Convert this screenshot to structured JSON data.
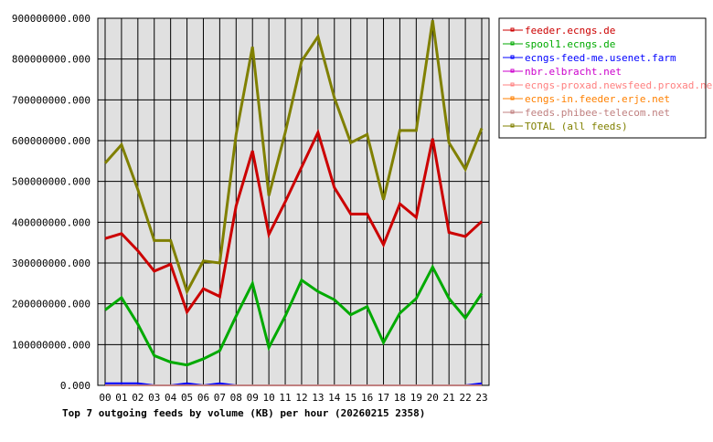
{
  "chart_data": {
    "type": "line",
    "title": "Top 7 outgoing feeds by volume (KB) per hour (20260215 2358)",
    "xlabel": "",
    "ylabel": "",
    "ylim": [
      0,
      900000000
    ],
    "yticks": [
      "0.000",
      "100000000.000",
      "200000000.000",
      "300000000.000",
      "400000000.000",
      "500000000.000",
      "600000000.000",
      "700000000.000",
      "800000000.000",
      "900000000.000"
    ],
    "categories": [
      "00",
      "01",
      "02",
      "03",
      "04",
      "05",
      "06",
      "07",
      "08",
      "09",
      "10",
      "11",
      "12",
      "13",
      "14",
      "15",
      "16",
      "17",
      "18",
      "19",
      "20",
      "21",
      "22",
      "23"
    ],
    "grid": true,
    "legend_position": "right",
    "series": [
      {
        "name": "feeder.ecngs.de",
        "color": "#cc0000",
        "values": [
          360000000,
          372000000,
          330000000,
          280000000,
          297000000,
          180000000,
          237000000,
          218000000,
          440000000,
          575000000,
          370000000,
          450000000,
          535000000,
          620000000,
          485000000,
          420000000,
          420000000,
          345000000,
          445000000,
          412000000,
          605000000,
          375000000,
          365000000,
          402000000
        ]
      },
      {
        "name": "spool1.ecngs.de",
        "color": "#00aa00",
        "values": [
          185000000,
          215000000,
          150000000,
          73000000,
          57000000,
          50000000,
          65000000,
          85000000,
          170000000,
          250000000,
          93000000,
          170000000,
          258000000,
          230000000,
          210000000,
          173000000,
          193000000,
          105000000,
          177000000,
          213000000,
          290000000,
          213000000,
          165000000,
          225000000
        ]
      },
      {
        "name": "ecngs-feed-me.usenet.farm",
        "color": "#0000ff",
        "values": [
          5000000,
          5000000,
          5000000,
          0,
          0,
          5000000,
          0,
          5000000,
          0,
          0,
          0,
          0,
          0,
          0,
          0,
          0,
          0,
          0,
          0,
          0,
          0,
          0,
          0,
          5000000
        ]
      },
      {
        "name": "nbr.elbracht.net",
        "color": "#cc00cc",
        "values": [
          0,
          0,
          0,
          0,
          0,
          0,
          0,
          0,
          0,
          0,
          0,
          0,
          0,
          0,
          0,
          0,
          0,
          0,
          0,
          0,
          0,
          0,
          0,
          0
        ]
      },
      {
        "name": "ecngs-proxad.newsfeed.proxad.net",
        "color": "#ff8080",
        "values": [
          0,
          0,
          0,
          0,
          0,
          0,
          0,
          0,
          0,
          0,
          0,
          0,
          0,
          0,
          0,
          0,
          0,
          0,
          0,
          0,
          0,
          0,
          0,
          0
        ]
      },
      {
        "name": "ecngs-in.feeder.erje.net",
        "color": "#ff8000",
        "values": [
          0,
          0,
          0,
          0,
          0,
          0,
          0,
          0,
          0,
          0,
          0,
          0,
          0,
          0,
          0,
          0,
          0,
          0,
          0,
          0,
          0,
          0,
          0,
          0
        ]
      },
      {
        "name": "feeds.phibee-telecom.net",
        "color": "#c08080",
        "values": [
          0,
          0,
          0,
          0,
          0,
          0,
          0,
          0,
          0,
          0,
          0,
          0,
          0,
          0,
          0,
          0,
          0,
          0,
          0,
          0,
          0,
          0,
          0,
          0
        ]
      },
      {
        "name": "TOTAL (all feeds)",
        "color": "#808000",
        "values": [
          545000000,
          590000000,
          480000000,
          355000000,
          355000000,
          230000000,
          305000000,
          300000000,
          615000000,
          830000000,
          465000000,
          620000000,
          795000000,
          855000000,
          705000000,
          595000000,
          615000000,
          455000000,
          625000000,
          625000000,
          895000000,
          595000000,
          530000000,
          630000000
        ]
      }
    ]
  }
}
